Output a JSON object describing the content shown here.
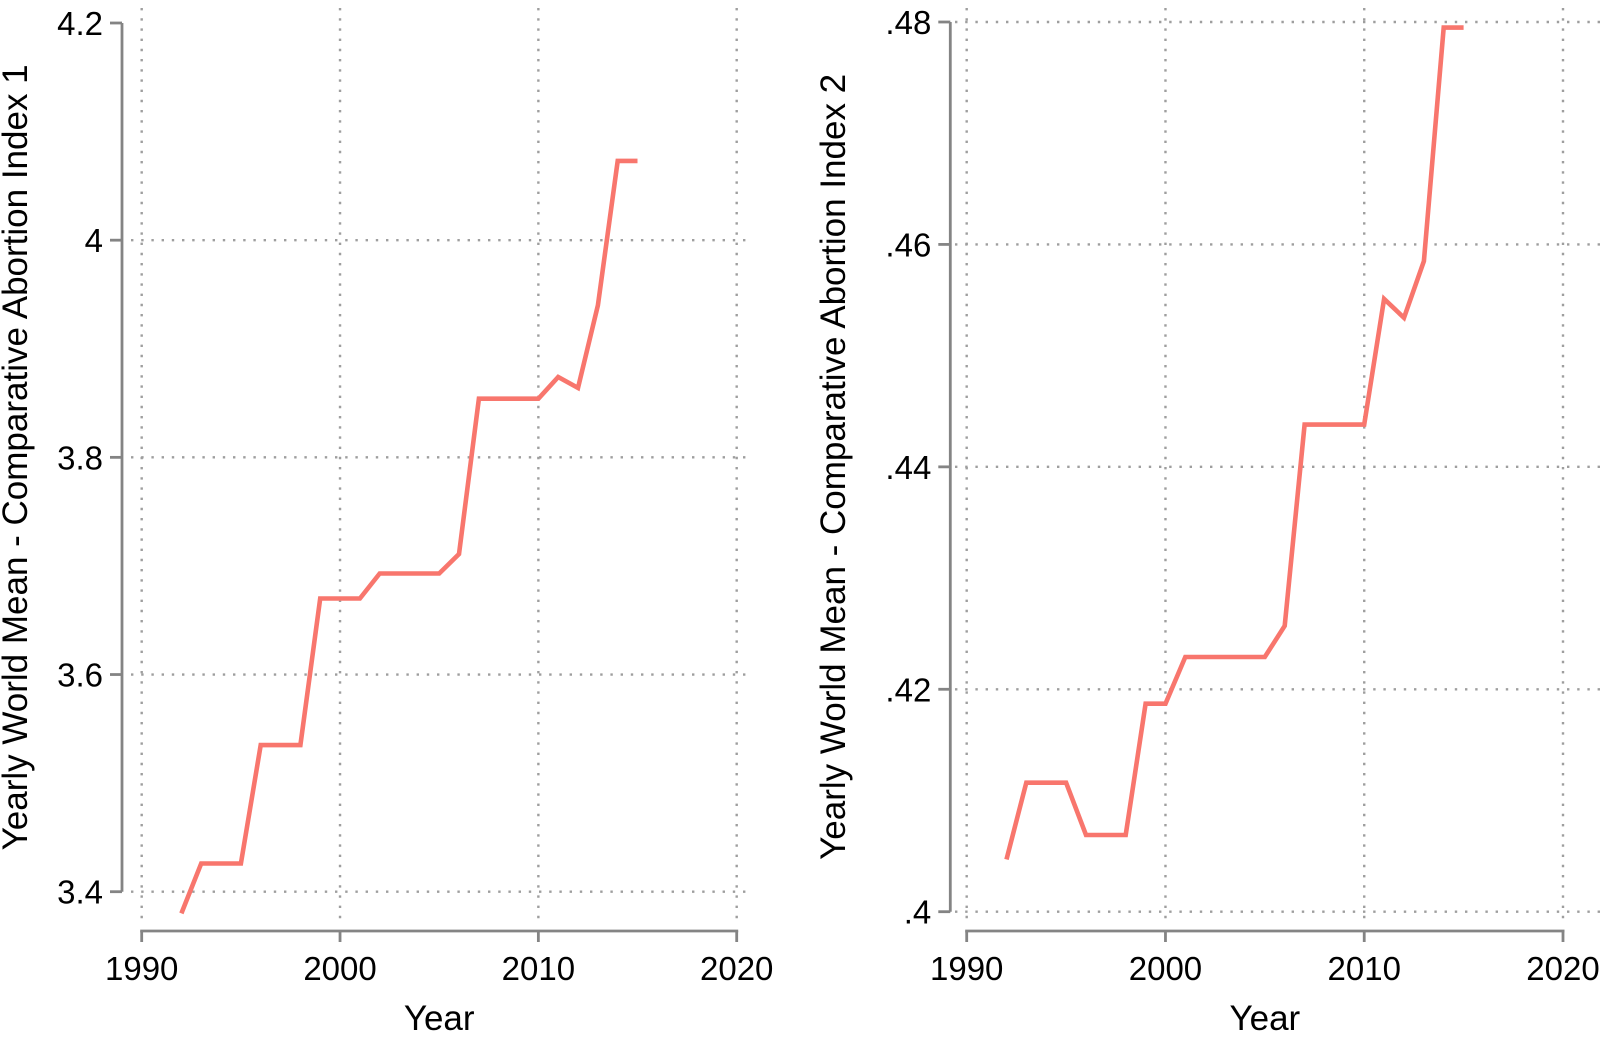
{
  "figure": {
    "background": "#ffffff",
    "series_color": "#f8766d",
    "axis_color": "#848484",
    "grid_color": "#9e9e9e",
    "text_color": "#000000"
  },
  "chart_data": [
    {
      "type": "line",
      "title": "",
      "xlabel": "Year",
      "ylabel": "Yearly World Mean - Comparative Abortion Index 1",
      "x": [
        1992,
        1993,
        1994,
        1995,
        1996,
        1997,
        1998,
        1999,
        2000,
        2001,
        2002,
        2003,
        2004,
        2005,
        2006,
        2007,
        2008,
        2009,
        2010,
        2011,
        2012,
        2013,
        2014,
        2015
      ],
      "y": [
        3.38,
        3.426,
        3.426,
        3.426,
        3.535,
        3.535,
        3.535,
        3.67,
        3.67,
        3.67,
        3.693,
        3.693,
        3.693,
        3.693,
        3.711,
        3.854,
        3.854,
        3.854,
        3.854,
        3.874,
        3.864,
        3.94,
        4.073,
        4.073
      ],
      "xlim": [
        1990,
        2020
      ],
      "ylim": [
        3.4,
        4.2
      ],
      "xticks": [
        1990,
        2000,
        2010,
        2020
      ],
      "xtick_labels": [
        "1990",
        "2000",
        "2010",
        "2020"
      ],
      "yticks": [
        3.4,
        3.6,
        3.8,
        4.0,
        4.2
      ],
      "ytick_labels": [
        "3.4",
        "3.6",
        "3.8",
        "4",
        "4.2"
      ],
      "grid": "dotted",
      "legend": "none",
      "line_color": "#f8766d"
    },
    {
      "type": "line",
      "title": "",
      "xlabel": "Year",
      "ylabel": "Yearly World Mean - Comparative Abortion Index 2",
      "x": [
        1992,
        1993,
        1994,
        1995,
        1996,
        1997,
        1998,
        1999,
        2000,
        2001,
        2002,
        2003,
        2004,
        2005,
        2006,
        2007,
        2008,
        2009,
        2010,
        2011,
        2012,
        2013,
        2014,
        2015
      ],
      "y": [
        0.4047,
        0.4116,
        0.4116,
        0.4116,
        0.4069,
        0.4069,
        0.4069,
        0.4187,
        0.4187,
        0.4229,
        0.4229,
        0.4229,
        0.4229,
        0.4229,
        0.4257,
        0.4438,
        0.4438,
        0.4438,
        0.4438,
        0.4551,
        0.4534,
        0.4585,
        0.4795,
        0.4795
      ],
      "xlim": [
        1990,
        2020
      ],
      "ylim": [
        0.4,
        0.48
      ],
      "xticks": [
        1990,
        2000,
        2010,
        2020
      ],
      "xtick_labels": [
        "1990",
        "2000",
        "2010",
        "2020"
      ],
      "yticks": [
        0.4,
        0.42,
        0.44,
        0.46,
        0.48
      ],
      "ytick_labels": [
        ".4",
        ".42",
        ".44",
        ".46",
        ".48"
      ],
      "grid": "dotted",
      "legend": "none",
      "line_color": "#f8766d"
    }
  ]
}
